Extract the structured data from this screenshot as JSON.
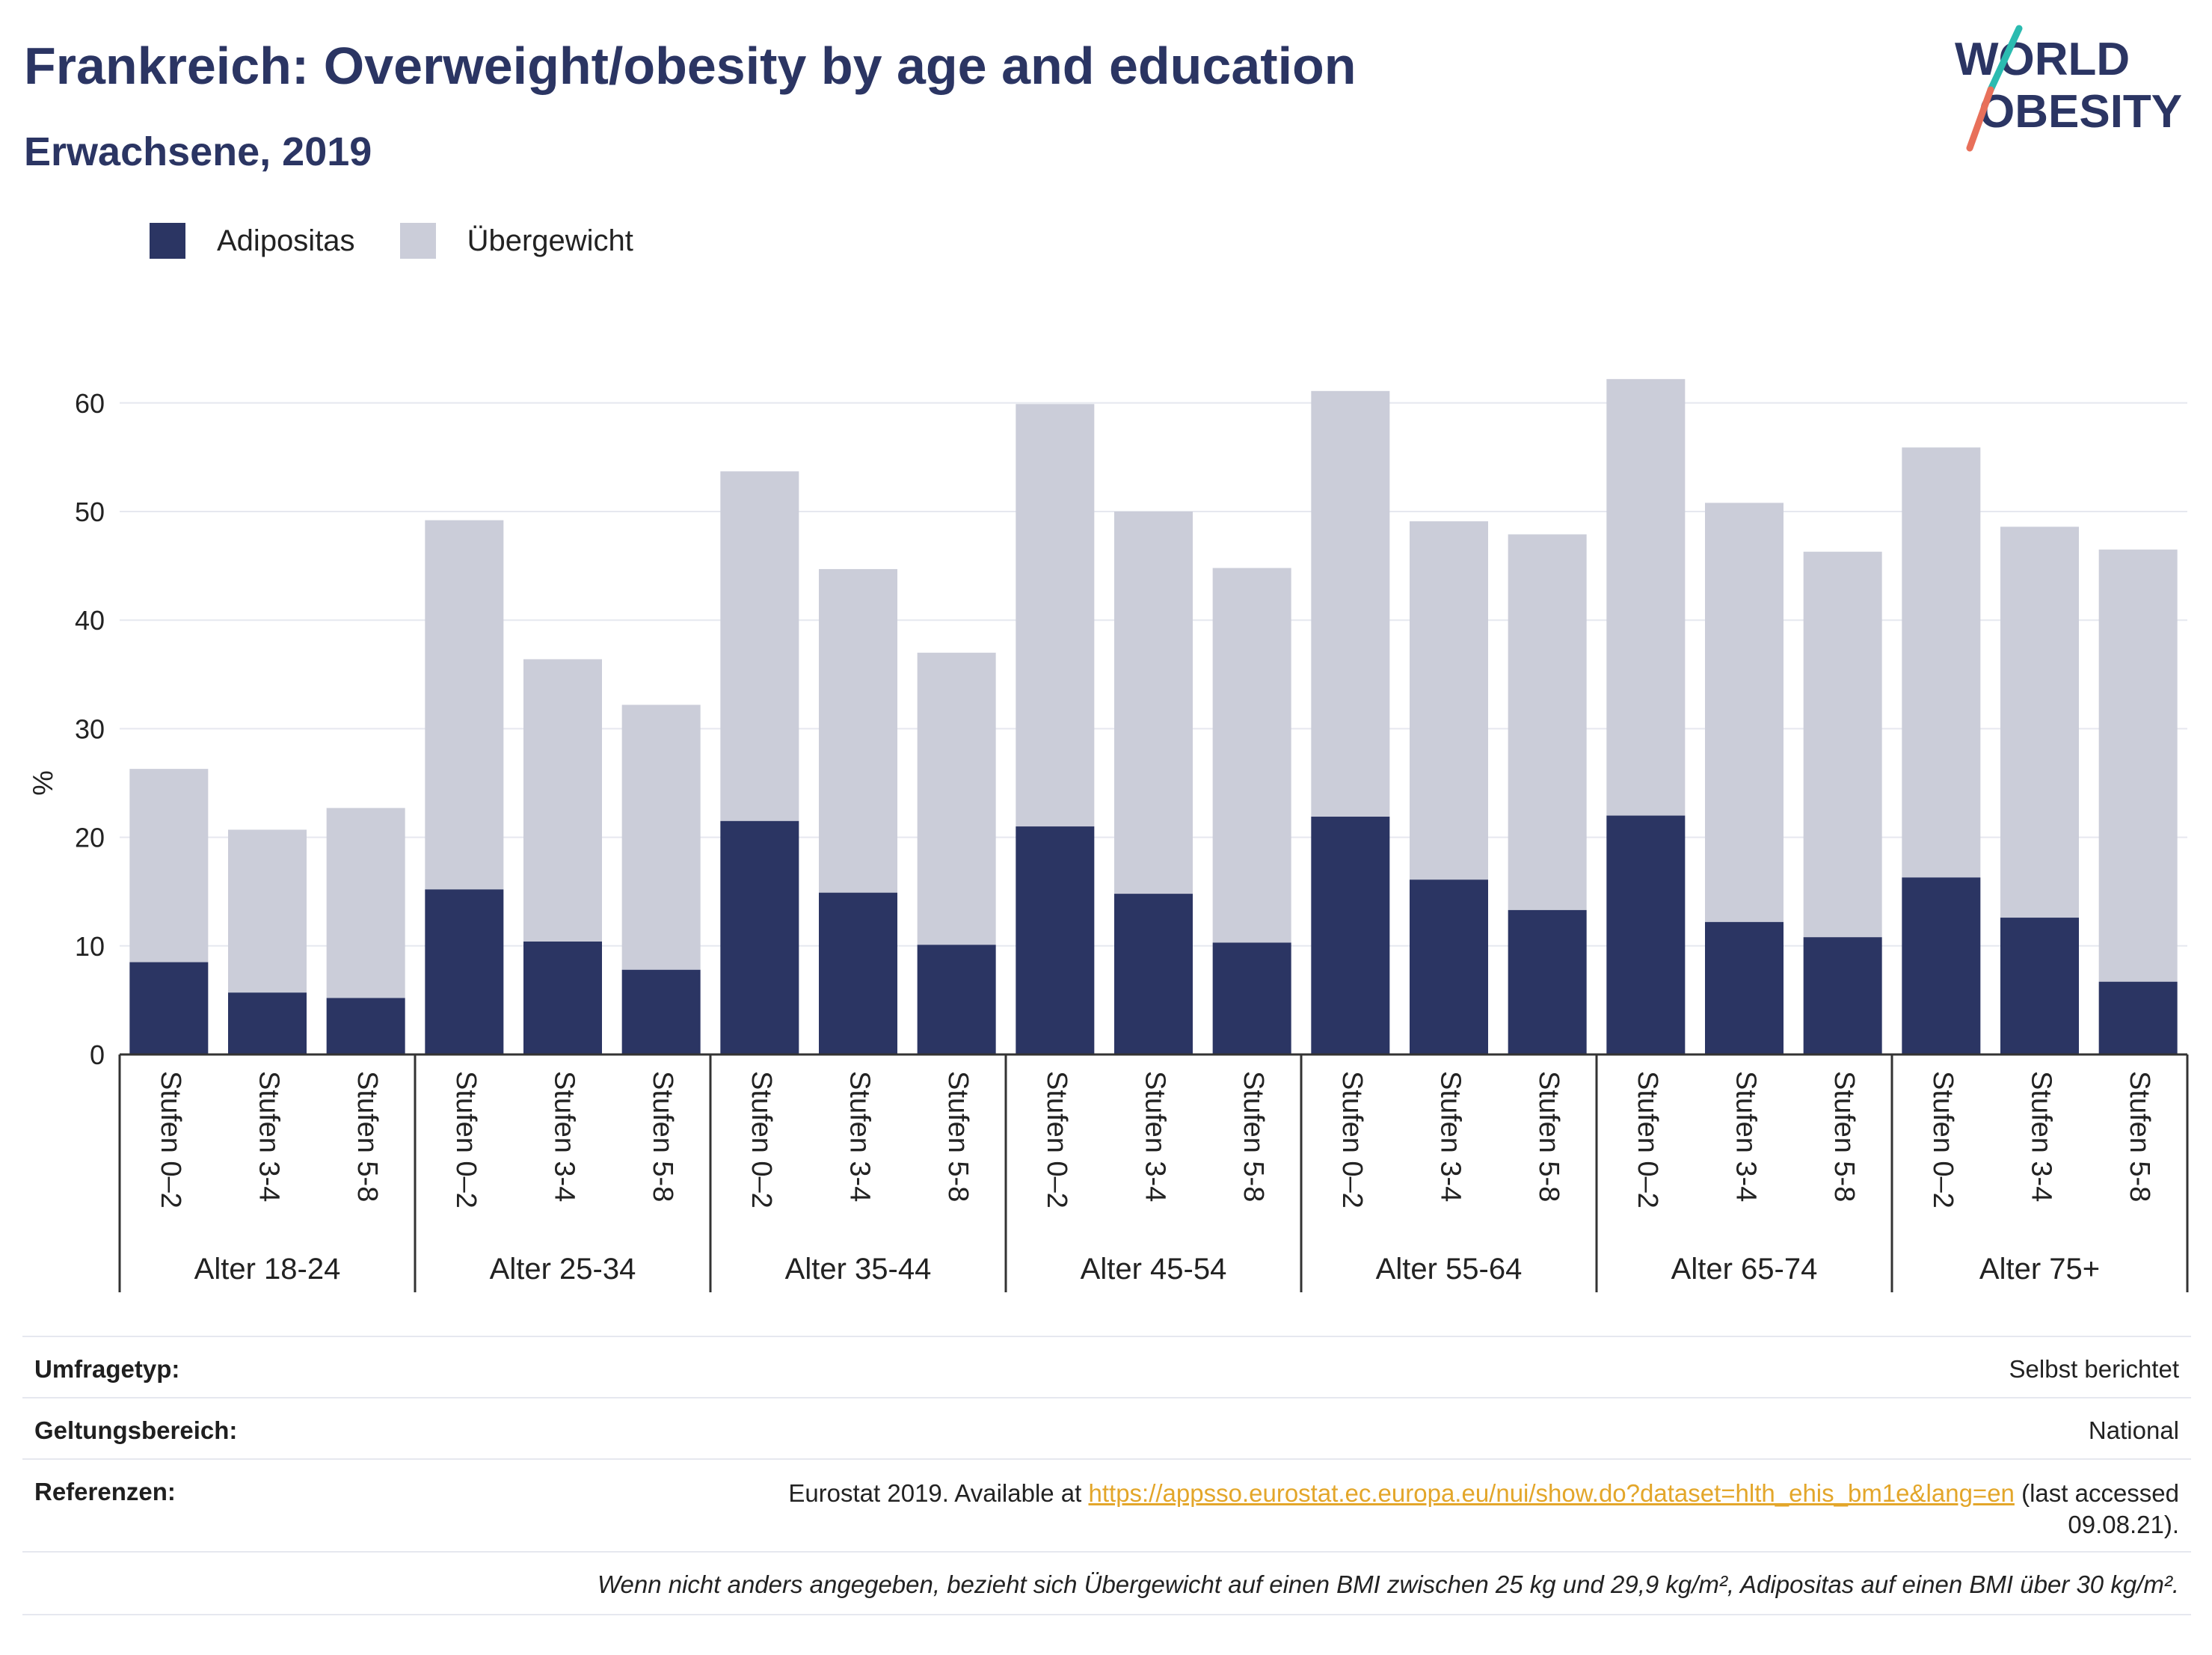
{
  "title": "Frankreich: Overweight/obesity by age and education",
  "subtitle": "Erwachsene, 2019",
  "logo": {
    "line1": "WORLD",
    "line2": "OBESITY"
  },
  "colors": {
    "obesity": "#2b3563",
    "overweight": "#cbcdd9",
    "title": "#2b3563",
    "link": "#e3a62a"
  },
  "chart_data": {
    "type": "bar",
    "stacked": true,
    "ylabel": "%",
    "ylim": [
      0,
      65
    ],
    "yticks": [
      0,
      10,
      20,
      30,
      40,
      50,
      60
    ],
    "grid": true,
    "legend_position": "top-left",
    "groups": [
      "Alter 18-24",
      "Alter 25-34",
      "Alter 35-44",
      "Alter 45-54",
      "Alter 55-64",
      "Alter 65-74",
      "Alter 75+"
    ],
    "subcategories": [
      "Stufen 0–2",
      "Stufen 3-4",
      "Stufen 5-8"
    ],
    "series": [
      {
        "name": "Adipositas",
        "color": "#2b3563",
        "values": [
          8.5,
          5.7,
          5.2,
          15.2,
          10.4,
          7.8,
          21.5,
          14.9,
          10.1,
          21.0,
          14.8,
          10.3,
          21.9,
          16.1,
          13.3,
          22.0,
          12.2,
          10.8,
          16.3,
          12.6,
          6.7
        ]
      },
      {
        "name": "Übergewicht",
        "color": "#cbcdd9",
        "values": [
          17.8,
          15.0,
          17.5,
          34.0,
          26.0,
          24.4,
          32.2,
          29.8,
          26.9,
          38.9,
          35.2,
          34.5,
          39.2,
          33.0,
          34.6,
          40.2,
          38.6,
          35.5,
          39.6,
          36.0,
          39.8
        ]
      }
    ]
  },
  "footer": {
    "survey_label": "Umfragetyp:",
    "survey_value": "Selbst berichtet",
    "scope_label": "Geltungsbereich:",
    "scope_value": "National",
    "refs_label": "Referenzen:",
    "refs_prefix": "Eurostat 2019. Available at ",
    "refs_link": "https://appsso.eurostat.ec.europa.eu/nui/show.do?dataset=hlth_ehis_bm1e&lang=en",
    "refs_suffix_1": " (last accessed",
    "refs_suffix_2": "09.08.21).",
    "note": "Wenn nicht anders angegeben, bezieht sich Übergewicht auf einen BMI zwischen 25 kg und 29,9 kg/m², Adipositas auf einen BMI über 30 kg/m²."
  }
}
